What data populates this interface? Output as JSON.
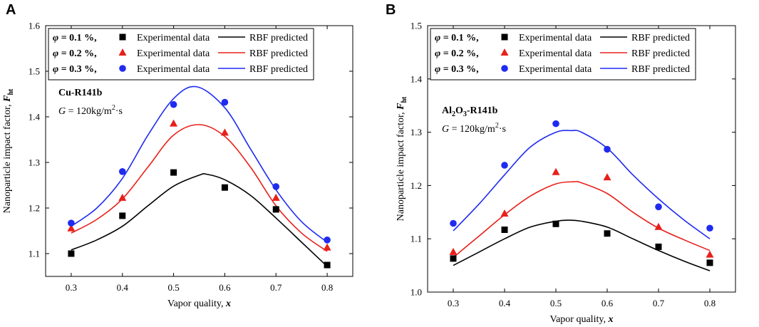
{
  "chart_data": [
    {
      "type": "scatter",
      "panel_label": "A",
      "title": "",
      "xlabel": "Vapor quality, x",
      "xlabel_parts": [
        "Vapor quality, ",
        "x"
      ],
      "ylabel": "Nanoparticle impact factor, F",
      "ylabel_sub": "ht",
      "xlim": [
        0.25,
        0.85
      ],
      "ylim": [
        1.05,
        1.6
      ],
      "xticks": [
        0.3,
        0.4,
        0.5,
        0.6,
        0.7,
        0.8
      ],
      "xtick_labels": [
        "0.3",
        "0.4",
        "0.5",
        "0.6",
        "0.7",
        "0.8"
      ],
      "yticks": [
        1.1,
        1.2,
        1.3,
        1.4,
        1.5,
        1.6
      ],
      "ytick_labels": [
        "1.1",
        "1.2",
        "1.3",
        "1.4",
        "1.5",
        "1.6"
      ],
      "annotation_material": "Cu-R141b",
      "annotation_G": "G = 120kg/m²·s",
      "annotation_G_parts": [
        "G",
        " = 120kg/m",
        "2",
        "·s"
      ],
      "legend": [
        {
          "phi": "φ = 0.1 %,",
          "exp_label": "Experimental data",
          "pred_label": "RBF predicted",
          "marker": "square",
          "color": "#000000"
        },
        {
          "phi": "φ = 0.2 %,",
          "exp_label": "Experimental data",
          "pred_label": "RBF predicted",
          "marker": "triangle",
          "color": "#e8201a"
        },
        {
          "phi": "φ = 0.3 %,",
          "exp_label": "Experimental data",
          "pred_label": "RBF predicted",
          "marker": "circle",
          "color": "#1f2bf0"
        }
      ],
      "series": [
        {
          "name": "φ = 0.1 % Experimental data",
          "marker": "square",
          "color": "#000000",
          "x": [
            0.3,
            0.4,
            0.5,
            0.6,
            0.7,
            0.8
          ],
          "y": [
            1.1,
            1.183,
            1.278,
            1.245,
            1.197,
            1.075
          ]
        },
        {
          "name": "φ = 0.2 % Experimental data",
          "marker": "triangle",
          "color": "#e8201a",
          "x": [
            0.3,
            0.4,
            0.5,
            0.6,
            0.7,
            0.8
          ],
          "y": [
            1.155,
            1.222,
            1.385,
            1.365,
            1.222,
            1.113
          ]
        },
        {
          "name": "φ = 0.3 % Experimental data",
          "marker": "circle",
          "color": "#1f2bf0",
          "x": [
            0.3,
            0.4,
            0.5,
            0.6,
            0.7,
            0.8
          ],
          "y": [
            1.167,
            1.28,
            1.427,
            1.432,
            1.247,
            1.13
          ]
        },
        {
          "name": "φ = 0.1 % RBF predicted",
          "marker": "line",
          "color": "#000000",
          "x": [
            0.3,
            0.35,
            0.4,
            0.45,
            0.5,
            0.55,
            0.565,
            0.6,
            0.65,
            0.7,
            0.75,
            0.8
          ],
          "y": [
            1.108,
            1.13,
            1.16,
            1.205,
            1.248,
            1.272,
            1.274,
            1.262,
            1.228,
            1.178,
            1.125,
            1.072
          ]
        },
        {
          "name": "φ = 0.2 % RBF predicted",
          "marker": "line",
          "color": "#e8201a",
          "x": [
            0.3,
            0.35,
            0.4,
            0.45,
            0.5,
            0.55,
            0.6,
            0.65,
            0.7,
            0.75,
            0.8
          ],
          "y": [
            1.145,
            1.175,
            1.22,
            1.29,
            1.36,
            1.383,
            1.357,
            1.29,
            1.205,
            1.145,
            1.105
          ]
        },
        {
          "name": "φ = 0.3 % RBF predicted",
          "marker": "line",
          "color": "#1f2bf0",
          "x": [
            0.3,
            0.35,
            0.4,
            0.45,
            0.5,
            0.545,
            0.6,
            0.65,
            0.7,
            0.75,
            0.8
          ],
          "y": [
            1.16,
            1.2,
            1.265,
            1.36,
            1.44,
            1.466,
            1.42,
            1.33,
            1.24,
            1.17,
            1.125
          ]
        }
      ]
    },
    {
      "type": "scatter",
      "panel_label": "B",
      "title": "",
      "xlabel": "Vapor quality, x",
      "xlabel_parts": [
        "Vapor quality, ",
        "x"
      ],
      "ylabel": "Nanoparticle impact factor, F",
      "ylabel_sub": "ht",
      "xlim": [
        0.25,
        0.85
      ],
      "ylim": [
        1.0,
        1.5
      ],
      "xticks": [
        0.3,
        0.4,
        0.5,
        0.6,
        0.7,
        0.8
      ],
      "xtick_labels": [
        "0.3",
        "0.4",
        "0.5",
        "0.6",
        "0.7",
        "0.8"
      ],
      "yticks": [
        1.0,
        1.1,
        1.2,
        1.3,
        1.4,
        1.5
      ],
      "ytick_labels": [
        "1.0",
        "1.1",
        "1.2",
        "1.3",
        "1.4",
        "1.5"
      ],
      "annotation_material": "Al2O3-R141b",
      "annotation_material_parts": [
        "Al",
        "2",
        "O",
        "3",
        "-R141b"
      ],
      "annotation_G": "G = 120kg/m²·s",
      "annotation_G_parts": [
        "G",
        " = 120kg/m",
        "2",
        "·s"
      ],
      "legend": [
        {
          "phi": "φ = 0.1 %,",
          "exp_label": "Experimental data",
          "pred_label": "RBF predicted",
          "marker": "square",
          "color": "#000000"
        },
        {
          "phi": "φ = 0.2 %,",
          "exp_label": "Experimental data",
          "pred_label": "RBF predicted",
          "marker": "triangle",
          "color": "#e8201a"
        },
        {
          "phi": "φ = 0.3 %,",
          "exp_label": "Experimental data",
          "pred_label": "RBF predicted",
          "marker": "circle",
          "color": "#1f2bf0"
        }
      ],
      "series": [
        {
          "name": "φ = 0.1 % Experimental data",
          "marker": "square",
          "color": "#000000",
          "x": [
            0.3,
            0.4,
            0.5,
            0.6,
            0.7,
            0.8
          ],
          "y": [
            1.063,
            1.117,
            1.128,
            1.11,
            1.085,
            1.055
          ]
        },
        {
          "name": "φ = 0.2 % Experimental data",
          "marker": "triangle",
          "color": "#e8201a",
          "x": [
            0.3,
            0.4,
            0.5,
            0.6,
            0.7,
            0.8
          ],
          "y": [
            1.075,
            1.147,
            1.225,
            1.215,
            1.122,
            1.07
          ]
        },
        {
          "name": "φ = 0.3 % Experimental data",
          "marker": "circle",
          "color": "#1f2bf0",
          "x": [
            0.3,
            0.4,
            0.5,
            0.6,
            0.7,
            0.8
          ],
          "y": [
            1.129,
            1.238,
            1.316,
            1.268,
            1.16,
            1.12
          ]
        },
        {
          "name": "φ = 0.1 % RBF predicted",
          "marker": "line",
          "color": "#000000",
          "x": [
            0.3,
            0.35,
            0.4,
            0.45,
            0.5,
            0.525,
            0.55,
            0.6,
            0.65,
            0.7,
            0.75,
            0.8
          ],
          "y": [
            1.05,
            1.075,
            1.1,
            1.122,
            1.133,
            1.135,
            1.133,
            1.122,
            1.1,
            1.078,
            1.058,
            1.04
          ]
        },
        {
          "name": "φ = 0.2 % RBF predicted",
          "marker": "line",
          "color": "#e8201a",
          "x": [
            0.3,
            0.35,
            0.4,
            0.45,
            0.5,
            0.535,
            0.55,
            0.6,
            0.65,
            0.7,
            0.75,
            0.8
          ],
          "y": [
            1.065,
            1.105,
            1.145,
            1.18,
            1.203,
            1.207,
            1.205,
            1.185,
            1.15,
            1.12,
            1.098,
            1.078
          ]
        },
        {
          "name": "φ = 0.3 % RBF predicted",
          "marker": "line",
          "color": "#1f2bf0",
          "x": [
            0.3,
            0.35,
            0.4,
            0.45,
            0.5,
            0.53,
            0.55,
            0.6,
            0.65,
            0.7,
            0.75,
            0.8
          ],
          "y": [
            1.115,
            1.165,
            1.22,
            1.272,
            1.3,
            1.303,
            1.3,
            1.27,
            1.22,
            1.175,
            1.135,
            1.1
          ]
        }
      ]
    }
  ]
}
